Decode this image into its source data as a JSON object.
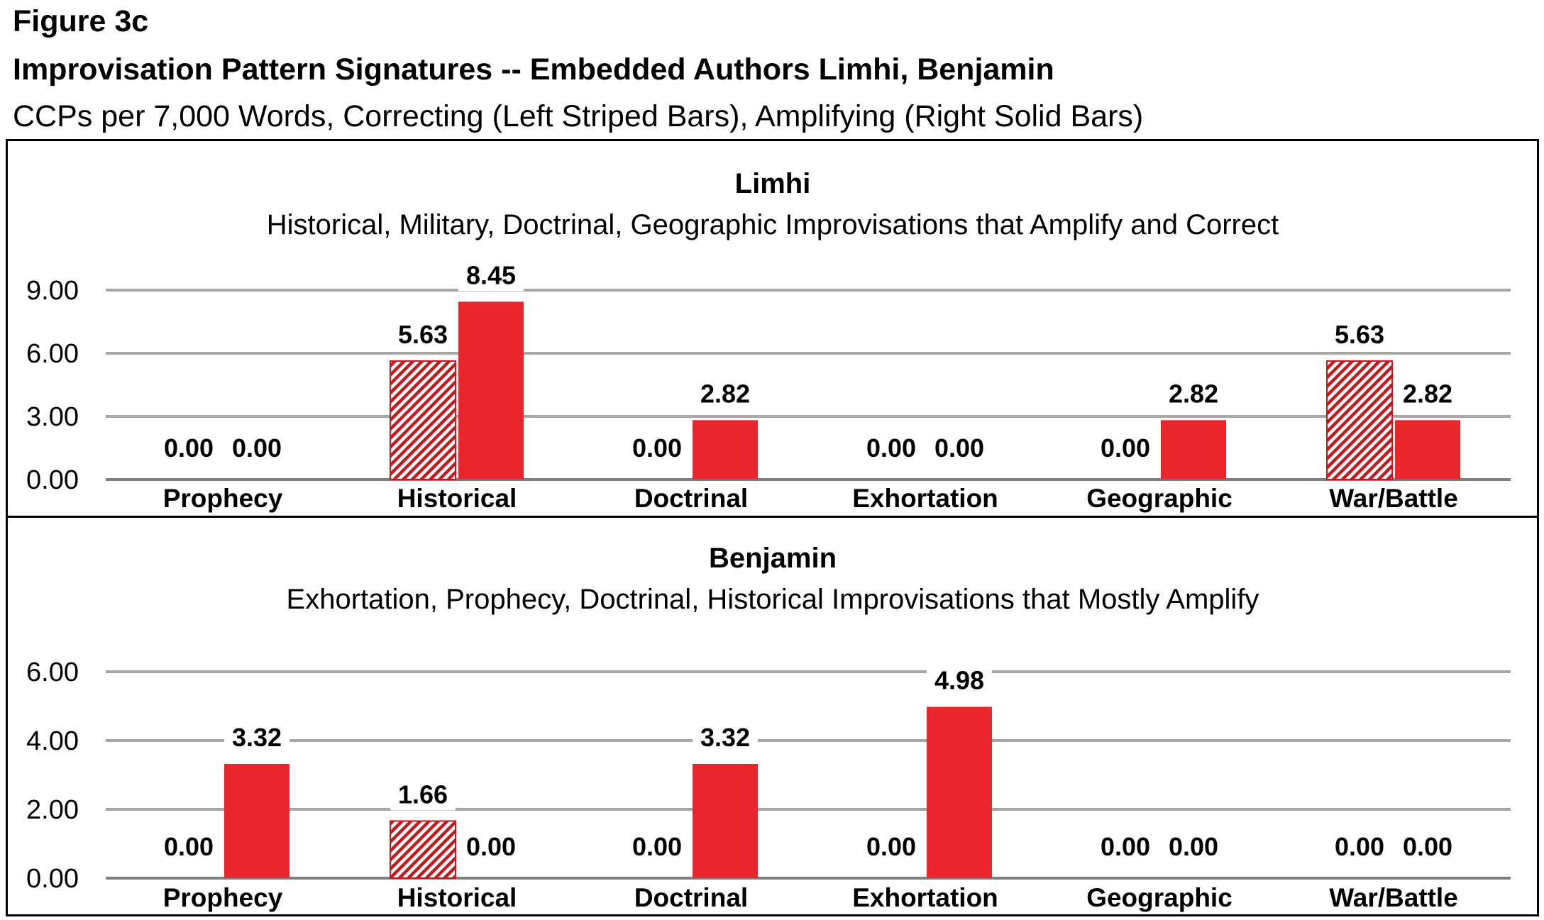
{
  "figure": {
    "label": "Figure 3c",
    "title": "Improvisation Pattern Signatures -- Embedded Authors Limhi, Benjamin",
    "subtitle": "CCPs per 7,000 Words, Correcting (Left Striped Bars), Amplifying (Right Solid Bars)"
  },
  "colors": {
    "bar": "#e8262b",
    "stripe": "#c11a1f",
    "grid": "#a6a6a6",
    "axis": "#808080"
  },
  "chart_data": [
    {
      "type": "bar",
      "title": "Limhi",
      "subtitle": "Historical, Military, Doctrinal, Geographic Improvisations that Amplify and Correct",
      "categories": [
        "Prophecy",
        "Historical",
        "Doctrinal",
        "Exhortation",
        "Geographic",
        "War/Battle"
      ],
      "series": [
        {
          "name": "Correcting",
          "pattern": "striped",
          "values": [
            0.0,
            5.63,
            0.0,
            0.0,
            0.0,
            5.63
          ]
        },
        {
          "name": "Amplifying",
          "pattern": "solid",
          "values": [
            0.0,
            8.45,
            2.82,
            0.0,
            2.82,
            2.82
          ]
        }
      ],
      "ylim": [
        0,
        9
      ],
      "yticks": [
        "0.00",
        "3.00",
        "6.00",
        "9.00"
      ],
      "grid": true
    },
    {
      "type": "bar",
      "title": "Benjamin",
      "subtitle": "Exhortation, Prophecy, Doctrinal, Historical Improvisations that Mostly Amplify",
      "categories": [
        "Prophecy",
        "Historical",
        "Doctrinal",
        "Exhortation",
        "Geographic",
        "War/Battle"
      ],
      "series": [
        {
          "name": "Correcting",
          "pattern": "striped",
          "values": [
            0.0,
            1.66,
            0.0,
            0.0,
            0.0,
            0.0
          ]
        },
        {
          "name": "Amplifying",
          "pattern": "solid",
          "values": [
            3.32,
            0.0,
            3.32,
            4.98,
            0.0,
            0.0
          ]
        }
      ],
      "ylim": [
        0,
        6
      ],
      "yticks": [
        "0.00",
        "2.00",
        "4.00",
        "6.00"
      ],
      "grid": true
    }
  ]
}
